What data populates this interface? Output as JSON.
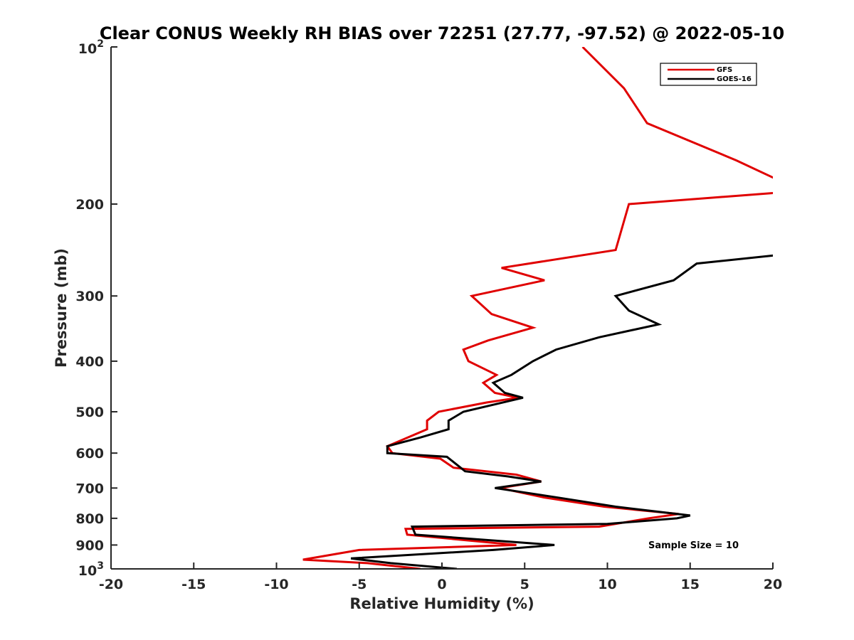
{
  "chart_data": {
    "type": "line",
    "title": "Clear CONUS Weekly RH BIAS over 72251 (27.77, -97.52) @ 2022-05-10",
    "xlabel": "Relative Humidity (%)",
    "ylabel": "Pressure (mb)",
    "xlim": [
      -20,
      20
    ],
    "ylim": [
      100,
      1000
    ],
    "y_scale": "log",
    "y_reversed": true,
    "x_ticks": [
      -20,
      -15,
      -10,
      -5,
      0,
      5,
      10,
      15,
      20
    ],
    "x_tick_labels": [
      "-20",
      "-15",
      "-10",
      "-5",
      "0",
      "5",
      "10",
      "15",
      "20"
    ],
    "y_ticks": [
      200,
      300,
      400,
      500,
      600,
      700,
      800,
      900
    ],
    "y_tick_labels": [
      "200",
      "300",
      "400",
      "500",
      "600",
      "700",
      "800",
      "900"
    ],
    "y_edge_labels": {
      "top_base": "10",
      "top_exp": "2",
      "bottom_base": "10",
      "bottom_exp": "3"
    },
    "grid": false,
    "legend_position": "top-right",
    "annotation": "Sample Size = 10",
    "series": [
      {
        "name": "GFS",
        "color": "#e00000",
        "points": [
          [
            8.5,
            100
          ],
          [
            11.0,
            120
          ],
          [
            12.4,
            140
          ],
          [
            17.8,
            165
          ],
          [
            20.5,
            181
          ],
          [
            20.5,
            190
          ],
          [
            11.3,
            200
          ],
          [
            10.5,
            245
          ],
          [
            3.6,
            265
          ],
          [
            6.2,
            280
          ],
          [
            1.8,
            300
          ],
          [
            3.0,
            325
          ],
          [
            5.5,
            345
          ],
          [
            2.8,
            365
          ],
          [
            1.3,
            380
          ],
          [
            1.6,
            400
          ],
          [
            3.3,
            425
          ],
          [
            2.5,
            440
          ],
          [
            3.2,
            460
          ],
          [
            4.6,
            470
          ],
          [
            2.7,
            480
          ],
          [
            -0.2,
            500
          ],
          [
            -0.9,
            520
          ],
          [
            -0.9,
            540
          ],
          [
            -3.3,
            582
          ],
          [
            -3.0,
            600
          ],
          [
            -0.1,
            615
          ],
          [
            0.7,
            640
          ],
          [
            4.5,
            660
          ],
          [
            6.0,
            680
          ],
          [
            3.5,
            700
          ],
          [
            6.2,
            730
          ],
          [
            9.8,
            760
          ],
          [
            14.3,
            785
          ],
          [
            12.5,
            800
          ],
          [
            9.5,
            830
          ],
          [
            -2.2,
            838
          ],
          [
            -2.1,
            860
          ],
          [
            4.5,
            900
          ],
          [
            -5.0,
            920
          ],
          [
            -8.4,
            960
          ],
          [
            -4.5,
            975
          ],
          [
            -1.3,
            1000
          ]
        ]
      },
      {
        "name": "GOES-16",
        "color": "#000000",
        "points": [
          [
            20.5,
            250
          ],
          [
            15.4,
            260
          ],
          [
            14.0,
            280
          ],
          [
            10.5,
            300
          ],
          [
            11.3,
            320
          ],
          [
            13.1,
            340
          ],
          [
            9.5,
            360
          ],
          [
            6.9,
            380
          ],
          [
            5.5,
            400
          ],
          [
            4.2,
            425
          ],
          [
            3.1,
            440
          ],
          [
            3.8,
            460
          ],
          [
            4.9,
            470
          ],
          [
            1.3,
            500
          ],
          [
            0.4,
            520
          ],
          [
            0.4,
            540
          ],
          [
            -1.3,
            560
          ],
          [
            -3.3,
            582
          ],
          [
            -3.3,
            600
          ],
          [
            0.3,
            610
          ],
          [
            1.4,
            650
          ],
          [
            4.0,
            665
          ],
          [
            6.0,
            680
          ],
          [
            3.2,
            700
          ],
          [
            4.5,
            710
          ],
          [
            7.0,
            730
          ],
          [
            10.5,
            760
          ],
          [
            15.0,
            790
          ],
          [
            14.2,
            800
          ],
          [
            10.0,
            820
          ],
          [
            -1.8,
            830
          ],
          [
            -1.6,
            860
          ],
          [
            6.8,
            900
          ],
          [
            3.1,
            920
          ],
          [
            -5.5,
            955
          ],
          [
            -3.1,
            975
          ],
          [
            0.9,
            1000
          ]
        ]
      }
    ]
  }
}
